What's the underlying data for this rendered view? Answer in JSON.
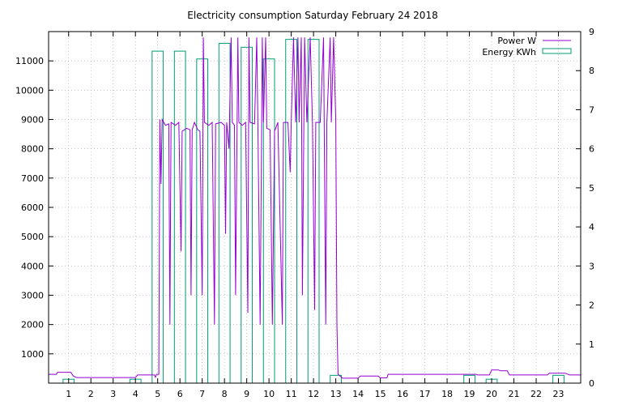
{
  "chart_data": {
    "type": "line",
    "title": "Electricity consumption Saturday February 24 2018",
    "x_ticks": [
      1,
      2,
      3,
      4,
      5,
      6,
      7,
      8,
      9,
      10,
      11,
      12,
      13,
      14,
      15,
      16,
      17,
      18,
      19,
      20,
      21,
      22,
      23
    ],
    "xlim": [
      0.1,
      24
    ],
    "y_left": {
      "label": "",
      "lim": [
        0,
        12000
      ],
      "ticks": [
        1000,
        2000,
        3000,
        4000,
        5000,
        6000,
        7000,
        8000,
        9000,
        10000,
        11000
      ]
    },
    "y_right": {
      "label": "",
      "lim": [
        0,
        9
      ],
      "ticks": [
        0,
        1,
        2,
        3,
        4,
        5,
        6,
        7,
        8,
        9
      ]
    },
    "grid": true,
    "legend_position": "top-right",
    "colors": {
      "power": "#9400d3",
      "energy": "#009e73"
    },
    "series": [
      {
        "name": "Power W",
        "axis": "left",
        "style": "line",
        "points": [
          [
            0.1,
            300
          ],
          [
            0.45,
            300
          ],
          [
            0.5,
            370
          ],
          [
            1.1,
            370
          ],
          [
            1.2,
            250
          ],
          [
            1.35,
            190
          ],
          [
            2,
            190
          ],
          [
            3,
            190
          ],
          [
            4,
            190
          ],
          [
            4.1,
            280
          ],
          [
            4.85,
            280
          ],
          [
            4.9,
            200
          ],
          [
            4.95,
            300
          ],
          [
            5.05,
            300
          ],
          [
            5.1,
            9000
          ],
          [
            5.15,
            6800
          ],
          [
            5.2,
            9000
          ],
          [
            5.35,
            8800
          ],
          [
            5.5,
            8850
          ],
          [
            5.55,
            2000
          ],
          [
            5.6,
            8900
          ],
          [
            5.8,
            8800
          ],
          [
            5.95,
            8900
          ],
          [
            6.05,
            4500
          ],
          [
            6.1,
            8600
          ],
          [
            6.3,
            8700
          ],
          [
            6.45,
            8650
          ],
          [
            6.5,
            3000
          ],
          [
            6.55,
            8650
          ],
          [
            6.65,
            8900
          ],
          [
            6.8,
            8650
          ],
          [
            6.9,
            8600
          ],
          [
            7,
            3000
          ],
          [
            7.05,
            11800
          ],
          [
            7.1,
            8900
          ],
          [
            7.3,
            8800
          ],
          [
            7.45,
            8900
          ],
          [
            7.55,
            2000
          ],
          [
            7.6,
            8850
          ],
          [
            7.85,
            8900
          ],
          [
            8,
            8800
          ],
          [
            8.05,
            5100
          ],
          [
            8.1,
            8900
          ],
          [
            8.2,
            8000
          ],
          [
            8.3,
            11800
          ],
          [
            8.35,
            8900
          ],
          [
            8.45,
            8800
          ],
          [
            8.5,
            3000
          ],
          [
            8.6,
            11800
          ],
          [
            8.65,
            8900
          ],
          [
            8.8,
            8800
          ],
          [
            8.95,
            8900
          ],
          [
            9.05,
            2400
          ],
          [
            9.1,
            11800
          ],
          [
            9.15,
            8900
          ],
          [
            9.35,
            8850
          ],
          [
            9.45,
            11800
          ],
          [
            9.5,
            8900
          ],
          [
            9.6,
            2000
          ],
          [
            9.7,
            11800
          ],
          [
            9.75,
            8900
          ],
          [
            9.85,
            11800
          ],
          [
            9.9,
            8700
          ],
          [
            10.05,
            8650
          ],
          [
            10.15,
            2000
          ],
          [
            10.25,
            8600
          ],
          [
            10.4,
            8900
          ],
          [
            10.6,
            2000
          ],
          [
            10.65,
            8900
          ],
          [
            10.85,
            8900
          ],
          [
            10.95,
            7200
          ],
          [
            11,
            8900
          ],
          [
            11.1,
            11800
          ],
          [
            11.2,
            8900
          ],
          [
            11.3,
            11800
          ],
          [
            11.35,
            8900
          ],
          [
            11.45,
            11800
          ],
          [
            11.5,
            3000
          ],
          [
            11.6,
            11800
          ],
          [
            11.7,
            8900
          ],
          [
            11.85,
            11800
          ],
          [
            11.95,
            8900
          ],
          [
            12.05,
            2500
          ],
          [
            12.1,
            8900
          ],
          [
            12.3,
            8900
          ],
          [
            12.45,
            11800
          ],
          [
            12.55,
            2000
          ],
          [
            12.6,
            8900
          ],
          [
            12.75,
            11800
          ],
          [
            12.8,
            8900
          ],
          [
            12.9,
            11800
          ],
          [
            13,
            8950
          ],
          [
            13.05,
            2000
          ],
          [
            13.1,
            300
          ],
          [
            13.3,
            170
          ],
          [
            14,
            170
          ],
          [
            14.1,
            240
          ],
          [
            14.9,
            240
          ],
          [
            15,
            180
          ],
          [
            15.3,
            180
          ],
          [
            15.35,
            300
          ],
          [
            19.3,
            300
          ],
          [
            19.35,
            280
          ],
          [
            19.9,
            280
          ],
          [
            20,
            450
          ],
          [
            20.3,
            450
          ],
          [
            20.4,
            420
          ],
          [
            20.7,
            420
          ],
          [
            20.8,
            280
          ],
          [
            22.5,
            280
          ],
          [
            22.6,
            340
          ],
          [
            23.3,
            340
          ],
          [
            23.5,
            280
          ],
          [
            24,
            280
          ]
        ]
      },
      {
        "name": "Energy KWh",
        "axis": "right",
        "style": "step-bars",
        "bars": [
          [
            1,
            0.1
          ],
          [
            4,
            0.1
          ],
          [
            5,
            8.5
          ],
          [
            6,
            8.5
          ],
          [
            7,
            8.3
          ],
          [
            8,
            8.7
          ],
          [
            9,
            8.6
          ],
          [
            10,
            8.3
          ],
          [
            11,
            8.8
          ],
          [
            12,
            8.8
          ],
          [
            13,
            0.2
          ],
          [
            19,
            0.2
          ],
          [
            20,
            0.1
          ],
          [
            23,
            0.2
          ]
        ]
      }
    ]
  }
}
